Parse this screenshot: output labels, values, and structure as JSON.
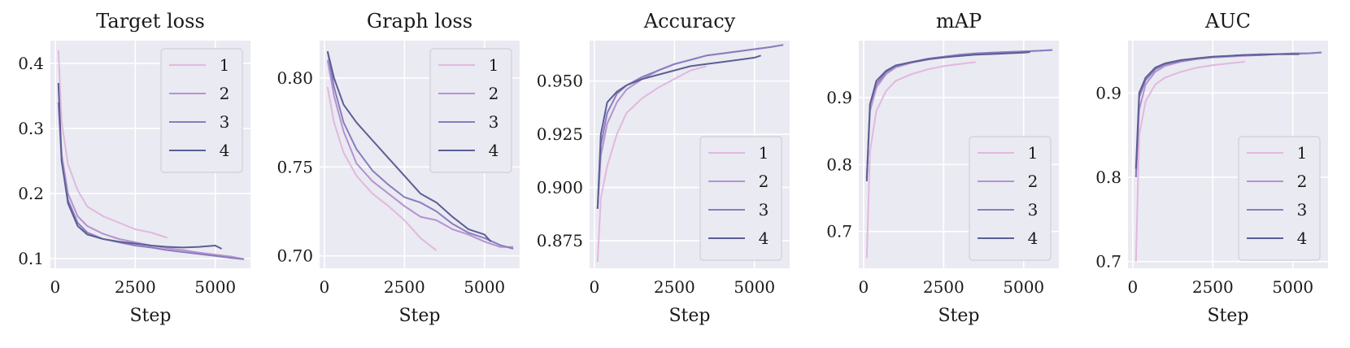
{
  "figure": {
    "legend_labels": [
      "1",
      "2",
      "3",
      "4"
    ],
    "series_colors": [
      "#e2b8de",
      "#b592d0",
      "#8a7cc0",
      "#5b5f94"
    ],
    "background": "#eaeaf2",
    "grid_color": "#ffffff"
  },
  "chart_data": [
    {
      "type": "line",
      "title": "Target loss",
      "xlabel": "Step",
      "ylabel": "",
      "xlim": [
        -150,
        6100
      ],
      "ylim": [
        0.085,
        0.435
      ],
      "xticks": [
        0,
        2500,
        5000
      ],
      "xtick_labels": [
        "0",
        "2500",
        "5000"
      ],
      "yticks": [
        0.1,
        0.2,
        0.3,
        0.4
      ],
      "ytick_labels": [
        "0.1",
        "0.2",
        "0.3",
        "0.4"
      ],
      "grid": true,
      "legend_position": "upper right",
      "series": [
        {
          "name": "1",
          "x": [
            100,
            200,
            400,
            700,
            1000,
            1500,
            2000,
            2500,
            3000,
            3500
          ],
          "y": [
            0.42,
            0.31,
            0.245,
            0.205,
            0.18,
            0.165,
            0.155,
            0.145,
            0.14,
            0.132
          ]
        },
        {
          "name": "2",
          "x": [
            100,
            200,
            400,
            700,
            1000,
            1500,
            2000,
            2500,
            3000,
            3500,
            4000,
            4500,
            5000,
            5500,
            5900
          ],
          "y": [
            0.34,
            0.26,
            0.2,
            0.165,
            0.15,
            0.138,
            0.13,
            0.125,
            0.12,
            0.116,
            0.113,
            0.109,
            0.106,
            0.103,
            0.099
          ]
        },
        {
          "name": "3",
          "x": [
            100,
            200,
            400,
            700,
            1000,
            1500,
            2000,
            2500,
            3000,
            3500,
            4000,
            4500,
            5000,
            5500,
            5900
          ],
          "y": [
            0.34,
            0.25,
            0.19,
            0.155,
            0.14,
            0.13,
            0.125,
            0.12,
            0.117,
            0.113,
            0.11,
            0.107,
            0.104,
            0.101,
            0.099
          ]
        },
        {
          "name": "4",
          "x": [
            100,
            200,
            400,
            700,
            1000,
            1500,
            2000,
            2500,
            3000,
            3500,
            4000,
            4500,
            5000,
            5200
          ],
          "y": [
            0.37,
            0.25,
            0.185,
            0.15,
            0.137,
            0.13,
            0.126,
            0.123,
            0.12,
            0.118,
            0.117,
            0.118,
            0.12,
            0.115
          ]
        }
      ]
    },
    {
      "type": "line",
      "title": "Graph loss",
      "xlabel": "Step",
      "ylabel": "",
      "xlim": [
        -150,
        6100
      ],
      "ylim": [
        0.693,
        0.821
      ],
      "xticks": [
        0,
        2500,
        5000
      ],
      "xtick_labels": [
        "0",
        "2500",
        "5000"
      ],
      "yticks": [
        0.7,
        0.75,
        0.8
      ],
      "ytick_labels": [
        "0.70",
        "0.75",
        "0.80"
      ],
      "grid": true,
      "legend_position": "upper right",
      "series": [
        {
          "name": "1",
          "x": [
            100,
            300,
            600,
            1000,
            1500,
            2000,
            2500,
            3000,
            3500
          ],
          "y": [
            0.795,
            0.775,
            0.758,
            0.745,
            0.735,
            0.728,
            0.72,
            0.71,
            0.703
          ]
        },
        {
          "name": "2",
          "x": [
            100,
            300,
            600,
            1000,
            1500,
            2000,
            2500,
            3000,
            3500,
            4000,
            4500,
            5000,
            5500,
            5900
          ],
          "y": [
            0.81,
            0.79,
            0.77,
            0.752,
            0.742,
            0.735,
            0.728,
            0.722,
            0.72,
            0.715,
            0.712,
            0.708,
            0.705,
            0.705
          ]
        },
        {
          "name": "3",
          "x": [
            100,
            300,
            600,
            1000,
            1500,
            2000,
            2500,
            3000,
            3500,
            4000,
            4500,
            5000,
            5500,
            5900
          ],
          "y": [
            0.815,
            0.795,
            0.775,
            0.76,
            0.748,
            0.74,
            0.733,
            0.73,
            0.725,
            0.718,
            0.713,
            0.71,
            0.706,
            0.704
          ]
        },
        {
          "name": "4",
          "x": [
            100,
            300,
            600,
            1000,
            1500,
            2000,
            2500,
            3000,
            3500,
            4000,
            4500,
            5000,
            5200
          ],
          "y": [
            0.815,
            0.8,
            0.785,
            0.775,
            0.765,
            0.755,
            0.745,
            0.735,
            0.73,
            0.722,
            0.715,
            0.712,
            0.708
          ]
        }
      ]
    },
    {
      "type": "line",
      "title": "Accuracy",
      "xlabel": "Step",
      "ylabel": "",
      "xlim": [
        -150,
        6100
      ],
      "ylim": [
        0.862,
        0.969
      ],
      "xticks": [
        0,
        2500,
        5000
      ],
      "xtick_labels": [
        "0",
        "2500",
        "5000"
      ],
      "yticks": [
        0.875,
        0.9,
        0.925,
        0.95
      ],
      "ytick_labels": [
        "0.875",
        "0.900",
        "0.925",
        "0.950"
      ],
      "grid": true,
      "legend_position": "lower right",
      "series": [
        {
          "name": "1",
          "x": [
            100,
            200,
            400,
            700,
            1000,
            1500,
            2000,
            2500,
            3000,
            3500
          ],
          "y": [
            0.865,
            0.895,
            0.91,
            0.925,
            0.935,
            0.942,
            0.947,
            0.951,
            0.955,
            0.957
          ]
        },
        {
          "name": "2",
          "x": [
            100,
            200,
            400,
            700,
            1000,
            1500,
            2000,
            2500,
            3000,
            3500,
            4000,
            4500,
            5000,
            5500,
            5900
          ],
          "y": [
            0.89,
            0.915,
            0.93,
            0.94,
            0.946,
            0.951,
            0.955,
            0.958,
            0.96,
            0.962,
            0.963,
            0.964,
            0.965,
            0.966,
            0.967
          ]
        },
        {
          "name": "3",
          "x": [
            100,
            200,
            400,
            700,
            1000,
            1500,
            2000,
            2500,
            3000,
            3500,
            4000,
            4500,
            5000,
            5500,
            5900
          ],
          "y": [
            0.89,
            0.92,
            0.935,
            0.944,
            0.948,
            0.952,
            0.955,
            0.958,
            0.96,
            0.962,
            0.963,
            0.964,
            0.965,
            0.966,
            0.967
          ]
        },
        {
          "name": "4",
          "x": [
            100,
            200,
            400,
            700,
            1000,
            1500,
            2000,
            2500,
            3000,
            3500,
            4000,
            4500,
            5000,
            5200
          ],
          "y": [
            0.89,
            0.925,
            0.94,
            0.945,
            0.948,
            0.951,
            0.953,
            0.955,
            0.957,
            0.958,
            0.959,
            0.96,
            0.961,
            0.962
          ]
        }
      ]
    },
    {
      "type": "line",
      "title": "mAP",
      "xlabel": "Step",
      "ylabel": "",
      "xlim": [
        -150,
        6100
      ],
      "ylim": [
        0.645,
        0.985
      ],
      "xticks": [
        0,
        2500,
        5000
      ],
      "xtick_labels": [
        "0",
        "2500",
        "5000"
      ],
      "yticks": [
        0.7,
        0.8,
        0.9
      ],
      "ytick_labels": [
        "0.7",
        "0.8",
        "0.9"
      ],
      "grid": true,
      "legend_position": "lower right",
      "series": [
        {
          "name": "1",
          "x": [
            100,
            200,
            400,
            700,
            1000,
            1500,
            2000,
            2500,
            3000,
            3500
          ],
          "y": [
            0.66,
            0.82,
            0.88,
            0.91,
            0.925,
            0.935,
            0.942,
            0.947,
            0.95,
            0.953
          ]
        },
        {
          "name": "2",
          "x": [
            100,
            200,
            400,
            700,
            1000,
            1500,
            2000,
            2500,
            3000,
            3500,
            4000,
            4500,
            5000,
            5500,
            5900
          ],
          "y": [
            0.78,
            0.88,
            0.915,
            0.935,
            0.945,
            0.952,
            0.957,
            0.96,
            0.963,
            0.965,
            0.967,
            0.968,
            0.969,
            0.97,
            0.971
          ]
        },
        {
          "name": "3",
          "x": [
            100,
            200,
            400,
            700,
            1000,
            1500,
            2000,
            2500,
            3000,
            3500,
            4000,
            4500,
            5000,
            5500,
            5900
          ],
          "y": [
            0.78,
            0.89,
            0.92,
            0.938,
            0.947,
            0.953,
            0.958,
            0.961,
            0.964,
            0.966,
            0.967,
            0.968,
            0.969,
            0.97,
            0.971
          ]
        },
        {
          "name": "4",
          "x": [
            100,
            200,
            400,
            700,
            1000,
            1500,
            2000,
            2500,
            3000,
            3500,
            4000,
            4500,
            5000,
            5200
          ],
          "y": [
            0.775,
            0.89,
            0.925,
            0.94,
            0.948,
            0.953,
            0.957,
            0.96,
            0.962,
            0.964,
            0.965,
            0.966,
            0.967,
            0.968
          ]
        }
      ]
    },
    {
      "type": "line",
      "title": "AUC",
      "xlabel": "Step",
      "ylabel": "",
      "xlim": [
        -150,
        6100
      ],
      "ylim": [
        0.692,
        0.962
      ],
      "xticks": [
        0,
        2500,
        5000
      ],
      "xtick_labels": [
        "0",
        "2500",
        "5000"
      ],
      "yticks": [
        0.7,
        0.8,
        0.9
      ],
      "ytick_labels": [
        "0.7",
        "0.8",
        "0.9"
      ],
      "grid": true,
      "legend_position": "lower right",
      "series": [
        {
          "name": "1",
          "x": [
            100,
            200,
            400,
            700,
            1000,
            1500,
            2000,
            2500,
            3000,
            3500
          ],
          "y": [
            0.7,
            0.85,
            0.89,
            0.91,
            0.918,
            0.925,
            0.93,
            0.933,
            0.935,
            0.937
          ]
        },
        {
          "name": "2",
          "x": [
            100,
            200,
            400,
            700,
            1000,
            1500,
            2000,
            2500,
            3000,
            3500,
            4000,
            4500,
            5000,
            5500,
            5900
          ],
          "y": [
            0.8,
            0.88,
            0.91,
            0.925,
            0.932,
            0.937,
            0.94,
            0.942,
            0.943,
            0.944,
            0.945,
            0.946,
            0.946,
            0.947,
            0.948
          ]
        },
        {
          "name": "3",
          "x": [
            100,
            200,
            400,
            700,
            1000,
            1500,
            2000,
            2500,
            3000,
            3500,
            4000,
            4500,
            5000,
            5500,
            5900
          ],
          "y": [
            0.8,
            0.895,
            0.915,
            0.928,
            0.934,
            0.938,
            0.941,
            0.943,
            0.944,
            0.945,
            0.946,
            0.946,
            0.947,
            0.947,
            0.948
          ]
        },
        {
          "name": "4",
          "x": [
            100,
            200,
            400,
            700,
            1000,
            1500,
            2000,
            2500,
            3000,
            3500,
            4000,
            4500,
            5000,
            5200
          ],
          "y": [
            0.81,
            0.9,
            0.918,
            0.93,
            0.935,
            0.939,
            0.941,
            0.943,
            0.944,
            0.945,
            0.945,
            0.946,
            0.946,
            0.946
          ]
        }
      ]
    }
  ]
}
